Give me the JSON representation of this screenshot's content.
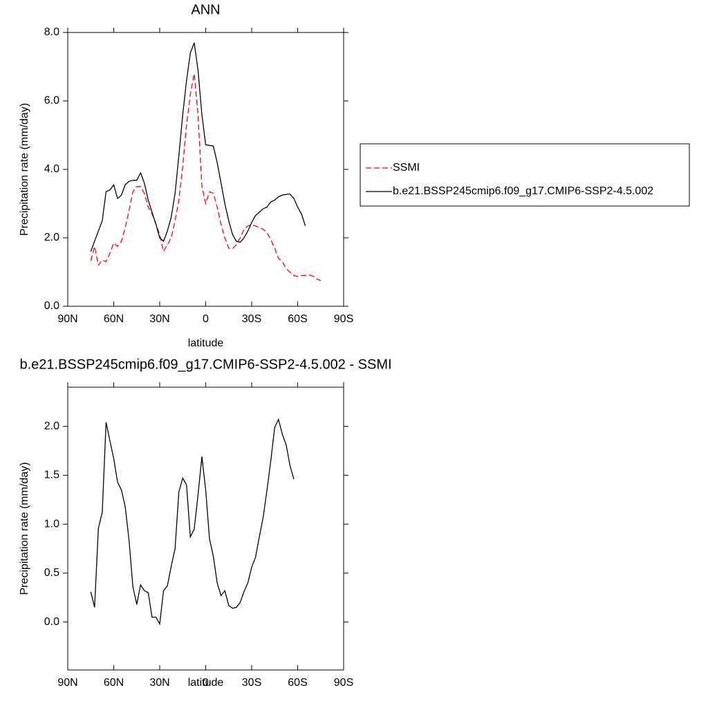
{
  "chart_data": [
    {
      "type": "line",
      "title": "ANN",
      "xlabel": "latitude",
      "ylabel": "Precipitation rate (mm/day)",
      "x": [
        75,
        72.5,
        70,
        67.5,
        65,
        62.5,
        60,
        57.5,
        55,
        52.5,
        50,
        47.5,
        45,
        42.5,
        40,
        37.5,
        35,
        32.5,
        30,
        27.5,
        25,
        22.5,
        20,
        17.5,
        15,
        12.5,
        10,
        7.5,
        5,
        2.5,
        0,
        -2.5,
        -5,
        -7.5,
        -10,
        -12.5,
        -15,
        -17.5,
        -20,
        -22.5,
        -25,
        -27.5,
        -30,
        -32.5,
        -35,
        -37.5,
        -40,
        -42.5,
        -45,
        -47.5,
        -50,
        -52.5,
        -55,
        -57.5,
        -60,
        -62.5,
        -65,
        -67.5,
        -70,
        -72.5,
        -75
      ],
      "xlim": [
        90,
        -90
      ],
      "xticks": [
        {
          "value": 90,
          "label": "90N"
        },
        {
          "value": 60,
          "label": "60N"
        },
        {
          "value": 30,
          "label": "30N"
        },
        0,
        {
          "value": -30,
          "label": "30S"
        },
        {
          "value": -60,
          "label": "60S"
        },
        {
          "value": -90,
          "label": "90S"
        }
      ],
      "ylim": [
        0,
        8
      ],
      "yticks": [
        {
          "value": 0,
          "label": "0.0"
        },
        {
          "value": 2,
          "label": "2.0"
        },
        {
          "value": 4,
          "label": "4.0"
        },
        {
          "value": 6,
          "label": "6.0"
        },
        {
          "value": 8,
          "label": "8.0"
        }
      ],
      "legend": "right",
      "series": [
        {
          "name": "SSMI",
          "color": "#ff0000",
          "line_style": "dashed",
          "values": [
            1.33,
            1.75,
            1.2,
            1.35,
            1.3,
            1.55,
            1.85,
            1.75,
            1.9,
            2.3,
            2.8,
            3.35,
            3.5,
            3.5,
            3.3,
            2.9,
            2.7,
            2.4,
            2.1,
            1.6,
            1.8,
            2.0,
            2.5,
            3.1,
            4.1,
            5.3,
            6.2,
            6.8,
            5.6,
            3.5,
            3.0,
            3.35,
            3.3,
            2.9,
            2.4,
            2.0,
            1.7,
            1.68,
            1.8,
            2.0,
            2.25,
            2.35,
            2.38,
            2.35,
            2.3,
            2.25,
            2.15,
            1.95,
            1.7,
            1.4,
            1.3,
            1.1,
            1.0,
            0.9,
            0.87,
            0.9,
            0.9,
            0.92,
            0.88,
            0.8,
            0.75
          ]
        },
        {
          "name": "b.e21.BSSP245cmip6.f09_g17.CMIP6-SSP2-4.5.002",
          "color": "#000000",
          "line_style": "solid",
          "values": [
            1.6,
            1.9,
            2.2,
            2.5,
            3.35,
            3.4,
            3.55,
            3.15,
            3.25,
            3.55,
            3.65,
            3.68,
            3.68,
            3.9,
            3.6,
            3.1,
            2.75,
            2.4,
            2.0,
            1.9,
            2.2,
            2.6,
            3.3,
            4.4,
            5.6,
            6.6,
            7.4,
            7.7,
            6.9,
            5.6,
            4.72,
            4.7,
            4.68,
            4.2,
            3.6,
            3.0,
            2.5,
            2.1,
            1.9,
            1.87,
            2.0,
            2.2,
            2.45,
            2.65,
            2.75,
            2.85,
            2.9,
            3.05,
            3.1,
            3.2,
            3.25,
            3.27,
            3.28,
            3.15,
            2.9,
            2.7,
            2.35,
            null,
            null,
            null,
            null
          ]
        }
      ]
    },
    {
      "type": "line",
      "title": "b.e21.BSSP245cmip6.f09_g17.CMIP6-SSP2-4.5.002 - SSMI",
      "xlabel": "latitude",
      "ylabel": "Precipitation rate (mm/day)",
      "x": [
        75,
        72.5,
        70,
        67.5,
        65,
        62.5,
        60,
        57.5,
        55,
        52.5,
        50,
        47.5,
        45,
        42.5,
        40,
        37.5,
        35,
        32.5,
        30,
        27.5,
        25,
        22.5,
        20,
        17.5,
        15,
        12.5,
        10,
        7.5,
        5,
        2.5,
        0,
        -2.5,
        -5,
        -7.5,
        -10,
        -12.5,
        -15,
        -17.5,
        -20,
        -22.5,
        -25,
        -27.5,
        -30,
        -32.5,
        -35,
        -37.5,
        -40,
        -42.5,
        -45,
        -47.5,
        -50,
        -52.5,
        -55,
        -57.5,
        -60,
        -62.5,
        -65
      ],
      "xlim": [
        90,
        -90
      ],
      "xticks": [
        {
          "value": 90,
          "label": "90N"
        },
        {
          "value": 60,
          "label": "60N"
        },
        {
          "value": 30,
          "label": "30N"
        },
        0,
        {
          "value": -30,
          "label": "30S"
        },
        {
          "value": -60,
          "label": "60S"
        },
        {
          "value": -90,
          "label": "90S"
        }
      ],
      "ylim": [
        -0.49,
        2.4
      ],
      "yticks": [
        {
          "value": 0,
          "label": "0.0"
        },
        {
          "value": 0.5,
          "label": "0.5"
        },
        {
          "value": 1,
          "label": "1.0"
        },
        {
          "value": 1.5,
          "label": "1.5"
        },
        {
          "value": 2,
          "label": "2.0"
        }
      ],
      "series": [
        {
          "color": "#000000",
          "line_style": "solid",
          "values": [
            0.31,
            0.15,
            0.96,
            1.12,
            2.04,
            1.85,
            1.67,
            1.43,
            1.35,
            1.18,
            0.83,
            0.36,
            0.18,
            0.38,
            0.32,
            0.3,
            0.05,
            0.05,
            -0.02,
            0.32,
            0.37,
            0.57,
            0.75,
            1.33,
            1.47,
            1.4,
            0.87,
            0.95,
            1.3,
            1.69,
            1.35,
            0.85,
            0.67,
            0.4,
            0.27,
            0.32,
            0.17,
            0.14,
            0.15,
            0.2,
            0.31,
            0.4,
            0.56,
            0.66,
            0.87,
            1.07,
            1.35,
            1.65,
            1.99,
            2.07,
            1.92,
            1.81,
            1.6,
            1.46,
            null,
            null,
            null
          ]
        }
      ]
    }
  ]
}
